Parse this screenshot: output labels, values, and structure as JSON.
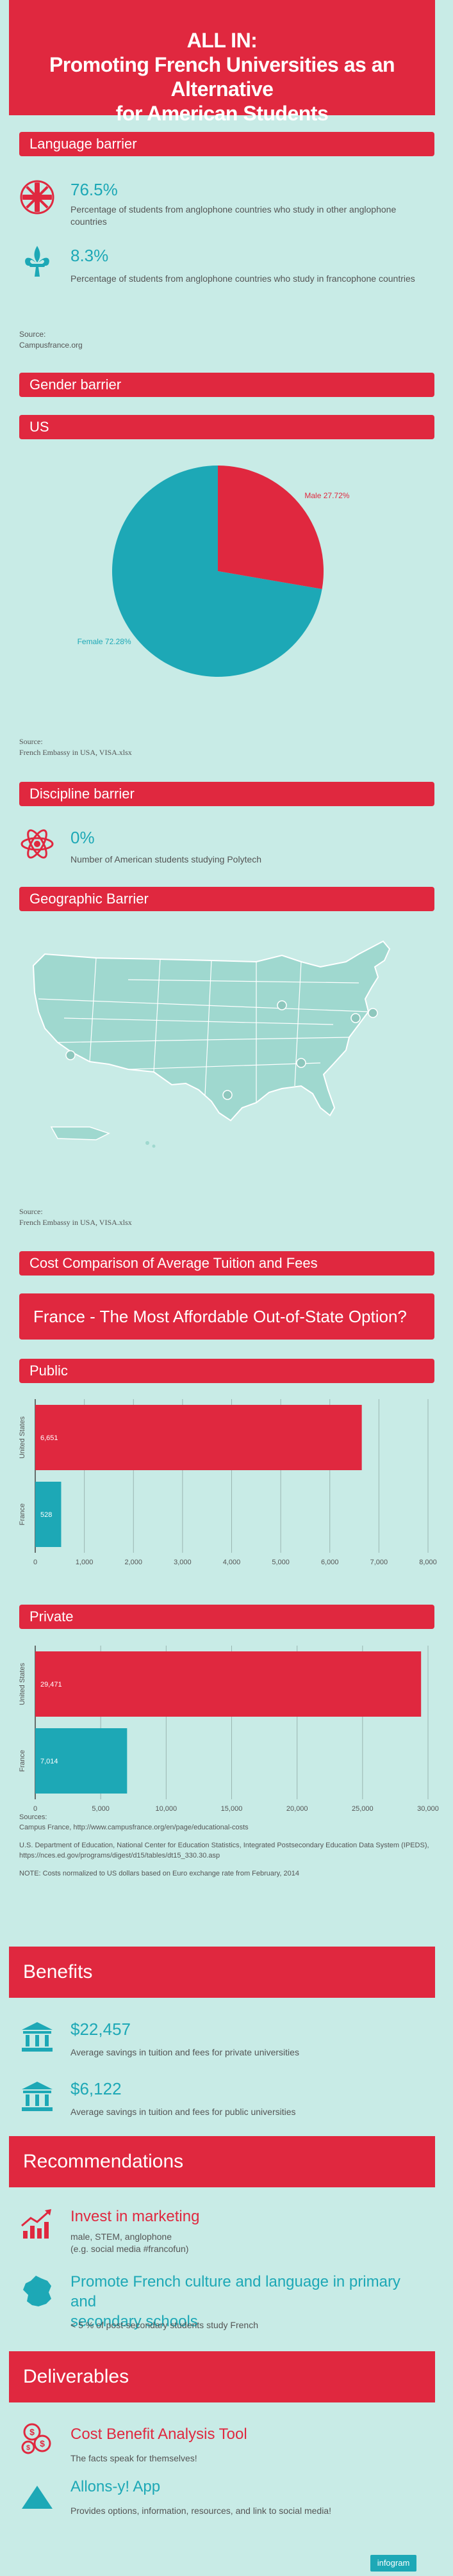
{
  "hero": {
    "line1": "ALL IN:",
    "line2": "Promoting French Universities as an Alternative",
    "line3": "for American Students"
  },
  "sections": {
    "language": "Language barrier",
    "gender": "Gender barrier",
    "us": "US",
    "discipline": "Discipline barrier",
    "geographic": "Geographic Barrier",
    "cost": "Cost Comparison of Average Tuition and Fees",
    "france_option": "France - The Most Affordable Out-of-State Option?",
    "public": "Public",
    "private": "Private",
    "benefits": "Benefits",
    "recommendations": "Recommendations",
    "deliverables": "Deliverables"
  },
  "language_stats": [
    {
      "value": "76.5%",
      "text": "Percentage of students from anglophone countries who study in other anglophone countries"
    },
    {
      "value": "8.3%",
      "text": "Percentage of students from anglophone countries who study in francophone countries"
    }
  ],
  "language_source": {
    "label": "Source:",
    "text": "Campusfrance.org"
  },
  "gender_source": {
    "label": "Source:",
    "text": "French Embassy in USA, VISA.xlsx"
  },
  "discipline_stat": {
    "value": "0%",
    "text": "Number of American students studying Polytech"
  },
  "geo_source": {
    "label": "Source:",
    "text": "French Embassy in USA, VISA.xlsx"
  },
  "cost_sources": {
    "label": "Sources:",
    "line1": "Campus France, http://www.campusfrance.org/en/page/educational-costs",
    "line2": "U.S. Department of Education, National Center for Education Statistics, Integrated Postsecondary Education Data System (IPEDS),",
    "line3": "https://nces.ed.gov/programs/digest/d15/tables/dt15_330.30.asp",
    "note": "NOTE: Costs normalized to US dollars based on Euro exchange rate from February, 2014"
  },
  "benefits": [
    {
      "value": "$22,457",
      "text": "Average savings in tuition and fees for private universities"
    },
    {
      "value": "$6,122",
      "text": "Average savings in tuition and fees for public universities"
    }
  ],
  "recommendations": [
    {
      "title": "Invest in marketing",
      "line1": "male, STEM, anglophone",
      "line2": "(e.g. social media #francofun)"
    },
    {
      "title1": "Promote French culture and language in primary and",
      "title2": "secondary schools",
      "line1": "< 5 % of post-secondary students study French"
    }
  ],
  "deliverables": [
    {
      "title": "Cost Benefit Analysis Tool",
      "text": "The facts speak for themselves!"
    },
    {
      "title": "Allons-y! App",
      "text": "Provides options, information, resources, and link to social media!"
    }
  ],
  "footer": {
    "badge": "infogram"
  },
  "colors": {
    "red": "#e0283f",
    "teal": "#1da8b6",
    "background": "#c8ebe6"
  },
  "icons": [
    "uk-flag-icon",
    "fleur-de-lis-icon",
    "atom-icon",
    "university-building-icon",
    "growth-chart-icon",
    "france-map-icon",
    "coins-icon",
    "triangle-icon"
  ],
  "chart_data": [
    {
      "type": "pie",
      "title": "US",
      "slices": [
        {
          "label": "Male 27.72%",
          "value": 27.72,
          "color": "#e0283f"
        },
        {
          "label": "Female 72.28%",
          "value": 72.28,
          "color": "#1da8b6"
        }
      ]
    },
    {
      "type": "bar",
      "orientation": "horizontal",
      "title": "Public",
      "categories": [
        "United States",
        "France"
      ],
      "values": [
        6651,
        528
      ],
      "value_labels": [
        "6,651",
        "528"
      ],
      "colors": [
        "#e0283f",
        "#1da8b6"
      ],
      "xlim": [
        0,
        8000
      ],
      "xticks": [
        0,
        1000,
        2000,
        3000,
        4000,
        5000,
        6000,
        7000,
        8000
      ],
      "xtick_labels": [
        "0",
        "1,000",
        "2,000",
        "3,000",
        "4,000",
        "5,000",
        "6,000",
        "7,000",
        "8,000"
      ],
      "grid": true
    },
    {
      "type": "bar",
      "orientation": "horizontal",
      "title": "Private",
      "categories": [
        "United States",
        "France"
      ],
      "values": [
        29471,
        7014
      ],
      "value_labels": [
        "29,471",
        "7,014"
      ],
      "colors": [
        "#e0283f",
        "#1da8b6"
      ],
      "xlim": [
        0,
        30000
      ],
      "xticks": [
        0,
        5000,
        10000,
        15000,
        20000,
        25000,
        30000
      ],
      "xtick_labels": [
        "0",
        "5,000",
        "10,000",
        "15,000",
        "20,000",
        "25,000",
        "30,000"
      ],
      "grid": true
    }
  ]
}
